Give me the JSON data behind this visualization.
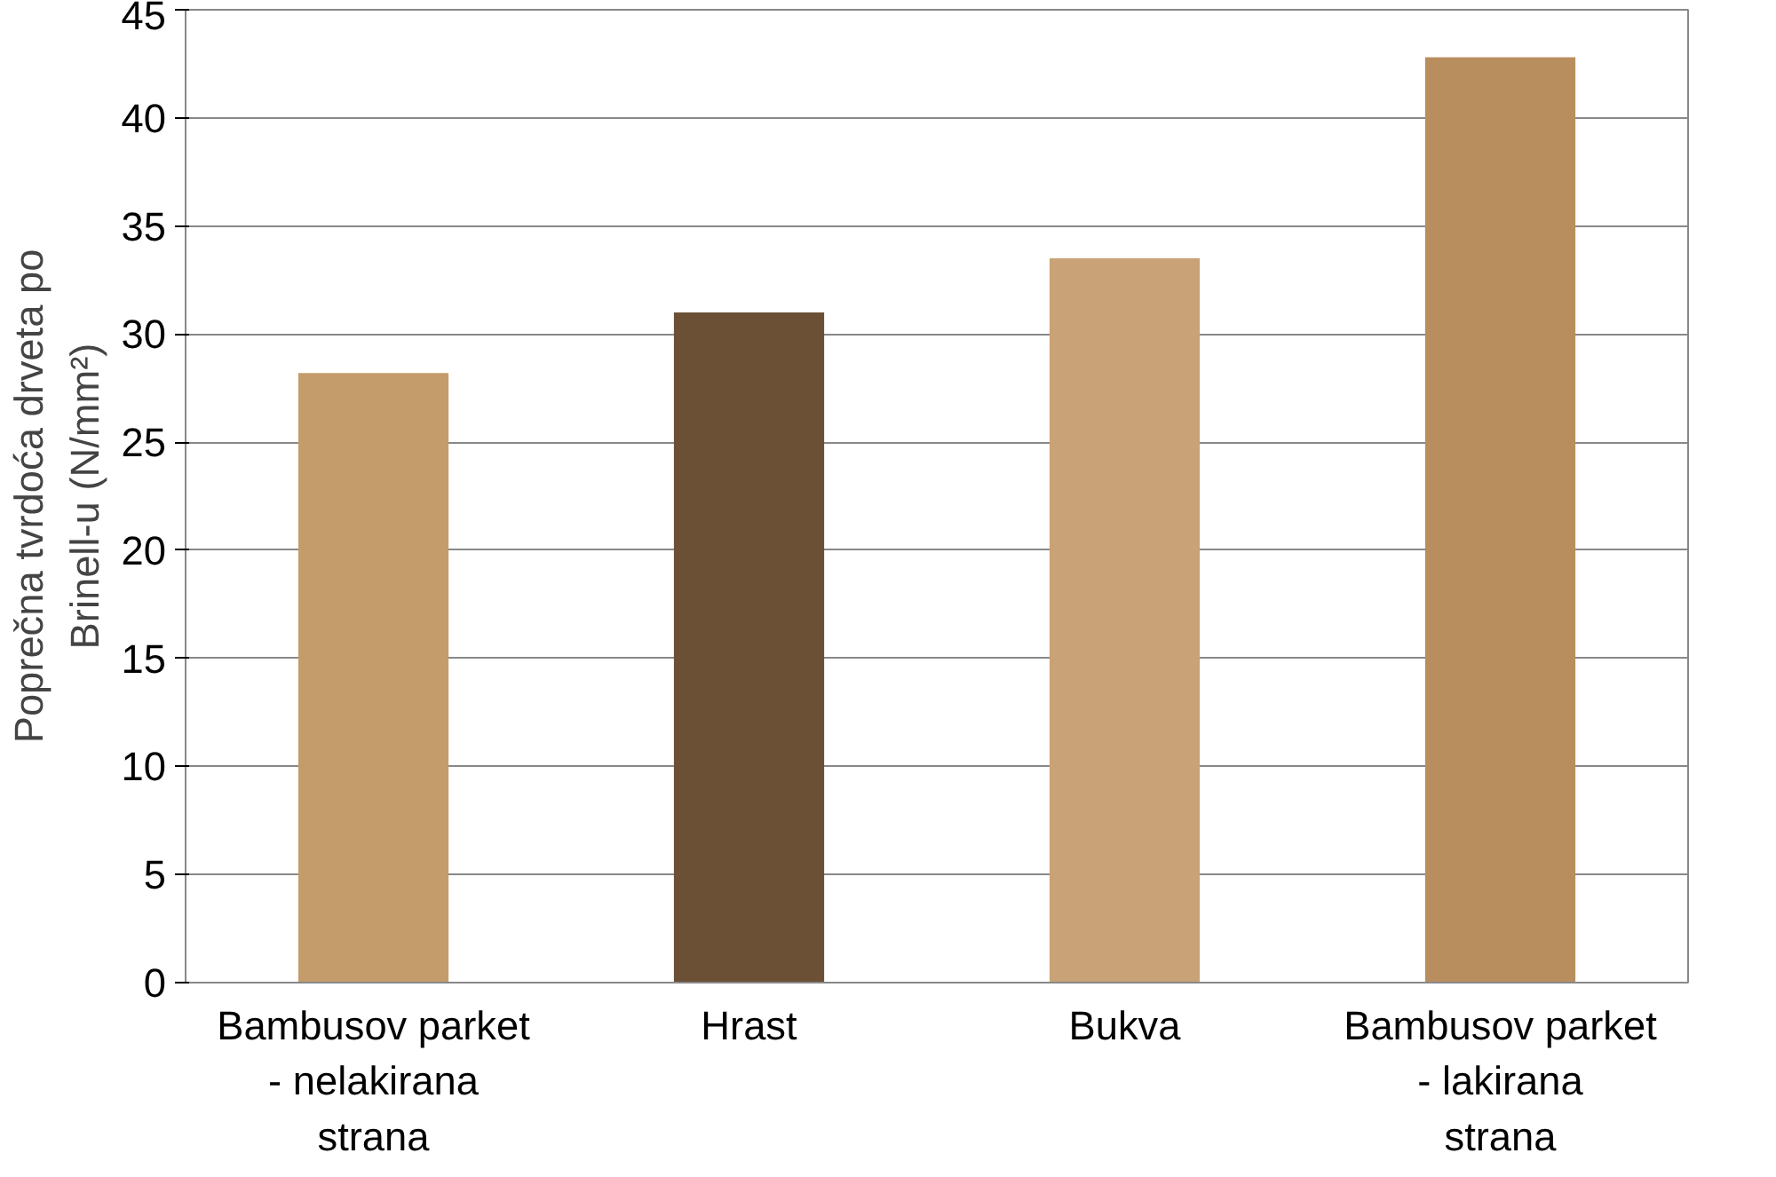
{
  "chart_data": {
    "type": "bar",
    "ylabel": "Poprečna tvrdoća drveta po Brinell-u (N/mm²)",
    "categories": [
      "Bambusov parket - nelakirana strana",
      "Hrast",
      "Bukva",
      "Bambusov parket - lakirana strana"
    ],
    "values": [
      28.2,
      31.0,
      33.5,
      42.8
    ],
    "colors": [
      "#c49c6c",
      "#6b5035",
      "#c9a277",
      "#b98e5e"
    ],
    "ylim": [
      0,
      45
    ],
    "yticks": [
      0,
      5,
      10,
      15,
      20,
      25,
      30,
      35,
      40,
      45
    ],
    "grid": "y"
  }
}
